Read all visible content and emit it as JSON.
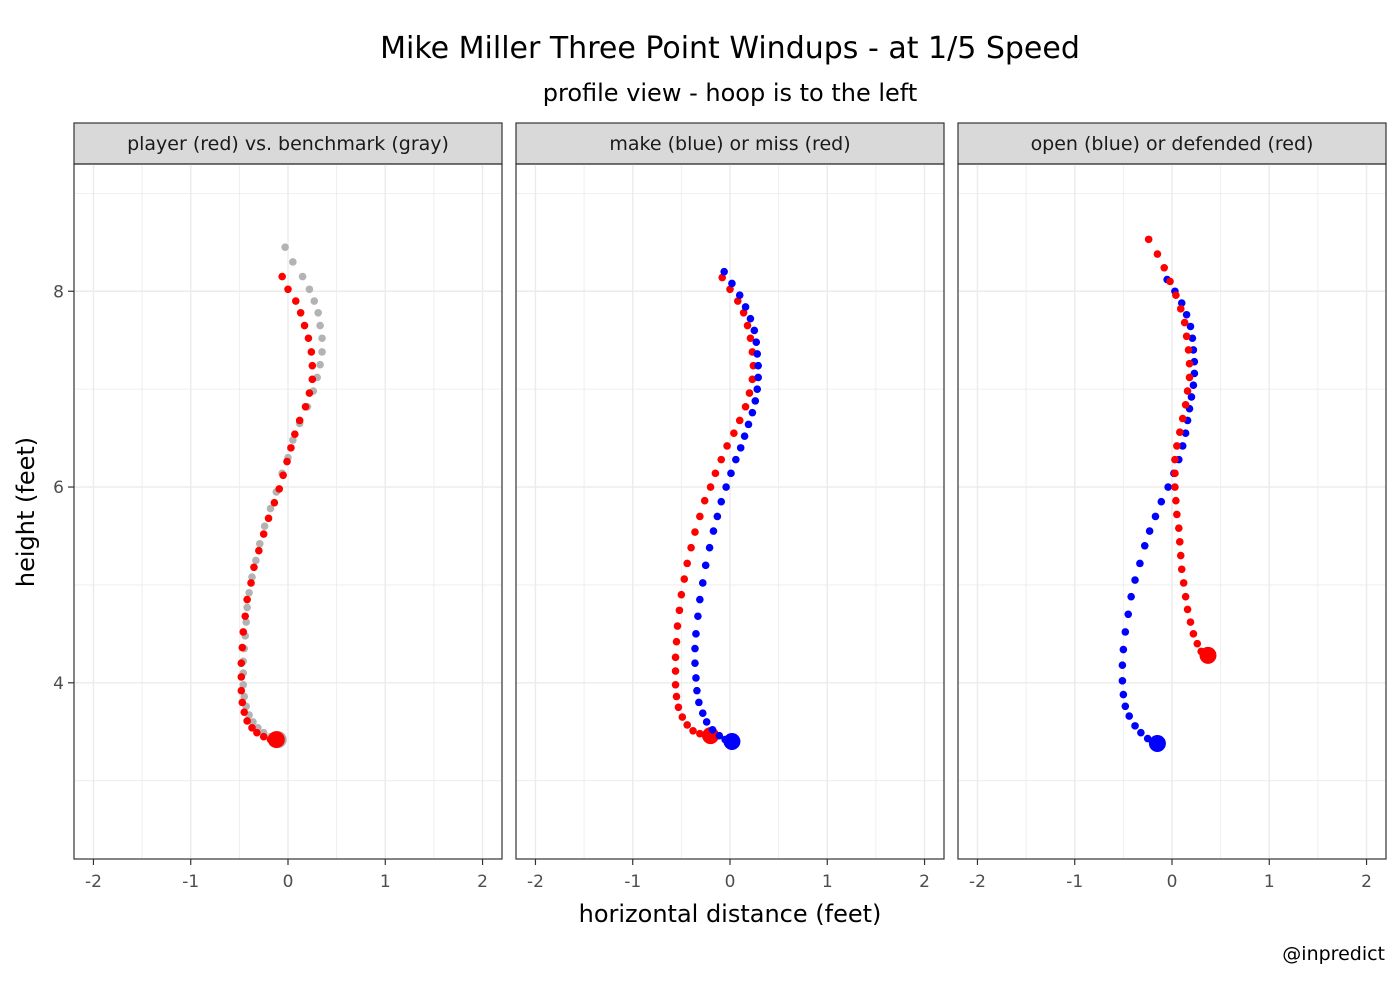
{
  "title": "Mike Miller Three Point Windups - at 1/5 Speed",
  "subtitle": "profile view - hoop is to the left",
  "xlabel": "horizontal distance (feet)",
  "ylabel": "height (feet)",
  "caption": "@inpredict",
  "colors": {
    "red": "#ff0000",
    "blue": "#0000ff",
    "gray": "#b3b3b3",
    "strip": "#d9d9d9",
    "grid_major": "#ebebeb"
  },
  "chart_data": [
    {
      "type": "scatter",
      "facet": "player (red) vs. benchmark (gray)",
      "xlim": [
        -2.2,
        2.2
      ],
      "ylim": [
        2.2,
        9.3
      ],
      "x_ticks": [
        -2,
        -1,
        0,
        1,
        2
      ],
      "x_tick_labels": [
        "-2",
        "-1",
        "0",
        "1",
        "2"
      ],
      "y_ticks": [
        4,
        6,
        8
      ],
      "y_tick_labels": [
        "4",
        "6",
        "8"
      ],
      "grid": true,
      "series": [
        {
          "color": "gray",
          "start": [
            -0.1,
            3.42
          ],
          "points": [
            [
              -0.03,
              8.45
            ],
            [
              0.05,
              8.3
            ],
            [
              0.15,
              8.15
            ],
            [
              0.22,
              8.02
            ],
            [
              0.27,
              7.9
            ],
            [
              0.31,
              7.78
            ],
            [
              0.33,
              7.65
            ],
            [
              0.35,
              7.52
            ],
            [
              0.35,
              7.38
            ],
            [
              0.33,
              7.25
            ],
            [
              0.3,
              7.12
            ],
            [
              0.26,
              6.98
            ],
            [
              0.2,
              6.82
            ],
            [
              0.12,
              6.65
            ],
            [
              0.05,
              6.48
            ],
            [
              0.0,
              6.3
            ],
            [
              -0.06,
              6.14
            ],
            [
              -0.12,
              5.95
            ],
            [
              -0.18,
              5.78
            ],
            [
              -0.24,
              5.6
            ],
            [
              -0.29,
              5.42
            ],
            [
              -0.33,
              5.25
            ],
            [
              -0.37,
              5.08
            ],
            [
              -0.4,
              4.92
            ],
            [
              -0.42,
              4.77
            ],
            [
              -0.43,
              4.62
            ],
            [
              -0.44,
              4.48
            ],
            [
              -0.45,
              4.35
            ],
            [
              -0.46,
              4.22
            ],
            [
              -0.46,
              4.1
            ],
            [
              -0.46,
              3.98
            ],
            [
              -0.45,
              3.86
            ],
            [
              -0.43,
              3.76
            ],
            [
              -0.4,
              3.67
            ],
            [
              -0.36,
              3.6
            ],
            [
              -0.31,
              3.54
            ],
            [
              -0.25,
              3.49
            ],
            [
              -0.18,
              3.45
            ],
            [
              -0.12,
              3.43
            ]
          ]
        },
        {
          "color": "red",
          "start": [
            -0.12,
            3.42
          ],
          "points": [
            [
              -0.06,
              8.15
            ],
            [
              0.0,
              8.02
            ],
            [
              0.08,
              7.9
            ],
            [
              0.13,
              7.78
            ],
            [
              0.17,
              7.65
            ],
            [
              0.21,
              7.52
            ],
            [
              0.24,
              7.38
            ],
            [
              0.25,
              7.24
            ],
            [
              0.25,
              7.1
            ],
            [
              0.22,
              6.96
            ],
            [
              0.18,
              6.82
            ],
            [
              0.12,
              6.68
            ],
            [
              0.07,
              6.54
            ],
            [
              0.03,
              6.4
            ],
            [
              -0.01,
              6.26
            ],
            [
              -0.05,
              6.12
            ],
            [
              -0.09,
              5.98
            ],
            [
              -0.14,
              5.84
            ],
            [
              -0.2,
              5.68
            ],
            [
              -0.25,
              5.52
            ],
            [
              -0.3,
              5.35
            ],
            [
              -0.35,
              5.18
            ],
            [
              -0.38,
              5.02
            ],
            [
              -0.42,
              4.85
            ],
            [
              -0.44,
              4.68
            ],
            [
              -0.46,
              4.52
            ],
            [
              -0.47,
              4.36
            ],
            [
              -0.48,
              4.2
            ],
            [
              -0.48,
              4.06
            ],
            [
              -0.48,
              3.92
            ],
            [
              -0.47,
              3.8
            ],
            [
              -0.45,
              3.7
            ],
            [
              -0.42,
              3.61
            ],
            [
              -0.37,
              3.54
            ],
            [
              -0.32,
              3.49
            ],
            [
              -0.25,
              3.45
            ],
            [
              -0.18,
              3.42
            ]
          ]
        }
      ]
    },
    {
      "type": "scatter",
      "facet": "make (blue) or miss (red)",
      "xlim": [
        -2.2,
        2.2
      ],
      "ylim": [
        2.2,
        9.3
      ],
      "x_ticks": [
        -2,
        -1,
        0,
        1,
        2
      ],
      "x_tick_labels": [
        "-2",
        "-1",
        "0",
        "1",
        "2"
      ],
      "y_ticks": [
        4,
        6,
        8
      ],
      "y_tick_labels": [
        "4",
        "6",
        "8"
      ],
      "grid": true,
      "series": [
        {
          "color": "red",
          "start": [
            -0.2,
            3.46
          ],
          "points": [
            [
              -0.08,
              8.14
            ],
            [
              0.0,
              8.02
            ],
            [
              0.08,
              7.9
            ],
            [
              0.14,
              7.78
            ],
            [
              0.18,
              7.65
            ],
            [
              0.21,
              7.52
            ],
            [
              0.23,
              7.38
            ],
            [
              0.24,
              7.24
            ],
            [
              0.23,
              7.1
            ],
            [
              0.2,
              6.96
            ],
            [
              0.16,
              6.82
            ],
            [
              0.1,
              6.68
            ],
            [
              0.04,
              6.55
            ],
            [
              -0.03,
              6.42
            ],
            [
              -0.09,
              6.28
            ],
            [
              -0.15,
              6.14
            ],
            [
              -0.2,
              6.0
            ],
            [
              -0.26,
              5.86
            ],
            [
              -0.31,
              5.7
            ],
            [
              -0.36,
              5.54
            ],
            [
              -0.4,
              5.38
            ],
            [
              -0.44,
              5.22
            ],
            [
              -0.47,
              5.06
            ],
            [
              -0.5,
              4.9
            ],
            [
              -0.52,
              4.74
            ],
            [
              -0.54,
              4.58
            ],
            [
              -0.55,
              4.42
            ],
            [
              -0.56,
              4.26
            ],
            [
              -0.56,
              4.12
            ],
            [
              -0.56,
              3.98
            ],
            [
              -0.55,
              3.86
            ],
            [
              -0.53,
              3.75
            ],
            [
              -0.49,
              3.65
            ],
            [
              -0.44,
              3.57
            ],
            [
              -0.38,
              3.51
            ],
            [
              -0.31,
              3.48
            ],
            [
              -0.25,
              3.46
            ]
          ]
        },
        {
          "color": "blue",
          "start": [
            0.02,
            3.4
          ],
          "points": [
            [
              -0.06,
              8.2
            ],
            [
              0.02,
              8.08
            ],
            [
              0.1,
              7.96
            ],
            [
              0.16,
              7.84
            ],
            [
              0.21,
              7.72
            ],
            [
              0.25,
              7.6
            ],
            [
              0.27,
              7.48
            ],
            [
              0.28,
              7.36
            ],
            [
              0.29,
              7.24
            ],
            [
              0.29,
              7.12
            ],
            [
              0.28,
              7.0
            ],
            [
              0.26,
              6.88
            ],
            [
              0.23,
              6.76
            ],
            [
              0.19,
              6.64
            ],
            [
              0.15,
              6.52
            ],
            [
              0.11,
              6.4
            ],
            [
              0.06,
              6.28
            ],
            [
              0.01,
              6.14
            ],
            [
              -0.04,
              6.0
            ],
            [
              -0.09,
              5.85
            ],
            [
              -0.13,
              5.7
            ],
            [
              -0.17,
              5.55
            ],
            [
              -0.21,
              5.38
            ],
            [
              -0.25,
              5.2
            ],
            [
              -0.28,
              5.02
            ],
            [
              -0.31,
              4.85
            ],
            [
              -0.33,
              4.68
            ],
            [
              -0.35,
              4.5
            ],
            [
              -0.36,
              4.35
            ],
            [
              -0.36,
              4.2
            ],
            [
              -0.35,
              4.05
            ],
            [
              -0.34,
              3.92
            ],
            [
              -0.32,
              3.8
            ],
            [
              -0.28,
              3.69
            ],
            [
              -0.24,
              3.6
            ],
            [
              -0.18,
              3.52
            ],
            [
              -0.11,
              3.46
            ],
            [
              -0.05,
              3.42
            ]
          ]
        }
      ]
    },
    {
      "type": "scatter",
      "facet": "open (blue) or defended (red)",
      "xlim": [
        -2.2,
        2.2
      ],
      "ylim": [
        2.2,
        9.3
      ],
      "x_ticks": [
        -2,
        -1,
        0,
        1,
        2
      ],
      "x_tick_labels": [
        "-2",
        "-1",
        "0",
        "1",
        "2"
      ],
      "y_ticks": [
        4,
        6,
        8
      ],
      "y_tick_labels": [
        "4",
        "6",
        "8"
      ],
      "grid": true,
      "series": [
        {
          "color": "blue",
          "start": [
            -0.15,
            3.38
          ],
          "points": [
            [
              -0.05,
              8.12
            ],
            [
              0.03,
              8.0
            ],
            [
              0.1,
              7.88
            ],
            [
              0.15,
              7.76
            ],
            [
              0.19,
              7.64
            ],
            [
              0.21,
              7.52
            ],
            [
              0.22,
              7.4
            ],
            [
              0.23,
              7.28
            ],
            [
              0.23,
              7.16
            ],
            [
              0.22,
              7.04
            ],
            [
              0.2,
              6.92
            ],
            [
              0.18,
              6.8
            ],
            [
              0.16,
              6.68
            ],
            [
              0.14,
              6.55
            ],
            [
              0.11,
              6.42
            ],
            [
              0.07,
              6.28
            ],
            [
              0.02,
              6.14
            ],
            [
              -0.04,
              6.0
            ],
            [
              -0.11,
              5.85
            ],
            [
              -0.17,
              5.7
            ],
            [
              -0.23,
              5.55
            ],
            [
              -0.28,
              5.4
            ],
            [
              -0.33,
              5.22
            ],
            [
              -0.38,
              5.05
            ],
            [
              -0.42,
              4.88
            ],
            [
              -0.45,
              4.7
            ],
            [
              -0.48,
              4.52
            ],
            [
              -0.5,
              4.34
            ],
            [
              -0.51,
              4.18
            ],
            [
              -0.51,
              4.02
            ],
            [
              -0.5,
              3.88
            ],
            [
              -0.48,
              3.76
            ],
            [
              -0.44,
              3.66
            ],
            [
              -0.38,
              3.56
            ],
            [
              -0.32,
              3.49
            ],
            [
              -0.25,
              3.43
            ],
            [
              -0.2,
              3.4
            ]
          ]
        },
        {
          "color": "red",
          "start": [
            0.37,
            4.28
          ],
          "points": [
            [
              -0.24,
              8.53
            ],
            [
              -0.15,
              8.38
            ],
            [
              -0.08,
              8.24
            ],
            [
              -0.02,
              8.1
            ],
            [
              0.04,
              7.96
            ],
            [
              0.09,
              7.82
            ],
            [
              0.13,
              7.68
            ],
            [
              0.15,
              7.54
            ],
            [
              0.17,
              7.4
            ],
            [
              0.18,
              7.26
            ],
            [
              0.18,
              7.12
            ],
            [
              0.16,
              6.98
            ],
            [
              0.14,
              6.84
            ],
            [
              0.11,
              6.7
            ],
            [
              0.08,
              6.56
            ],
            [
              0.05,
              6.42
            ],
            [
              0.03,
              6.28
            ],
            [
              0.03,
              6.14
            ],
            [
              0.03,
              6.0
            ],
            [
              0.04,
              5.86
            ],
            [
              0.05,
              5.72
            ],
            [
              0.07,
              5.58
            ],
            [
              0.08,
              5.44
            ],
            [
              0.09,
              5.3
            ],
            [
              0.1,
              5.16
            ],
            [
              0.12,
              5.02
            ],
            [
              0.14,
              4.88
            ],
            [
              0.16,
              4.75
            ],
            [
              0.19,
              4.62
            ],
            [
              0.22,
              4.5
            ],
            [
              0.26,
              4.4
            ],
            [
              0.3,
              4.32
            ]
          ]
        }
      ]
    }
  ]
}
